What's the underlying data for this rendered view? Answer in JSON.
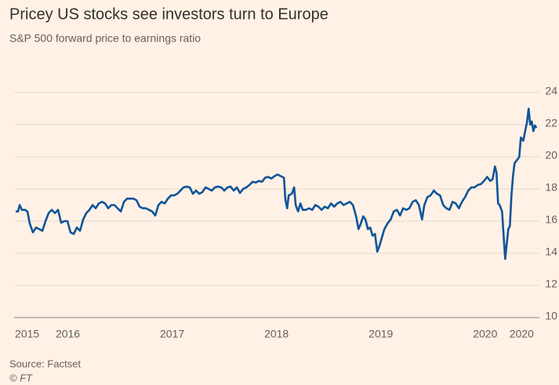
{
  "chart_data": {
    "type": "line",
    "title": "Pricey US stocks see investors turn to Europe",
    "subtitle": "S&P 500 forward price to earnings ratio",
    "source": "Source: Factset",
    "credit": "© FT",
    "xlim": [
      2015.5,
      2020.52
    ],
    "ylim": [
      10,
      24
    ],
    "yticks": [
      10,
      12,
      14,
      16,
      18,
      20,
      22,
      24
    ],
    "xticks": [
      {
        "value": 2015.61,
        "label": "2015"
      },
      2016,
      2017,
      2018,
      2019,
      2020,
      {
        "value": 2020.35,
        "label": "2020"
      }
    ],
    "grid": true,
    "x": [
      2015.5,
      2015.523,
      2015.538,
      2015.56,
      2015.59,
      2015.613,
      2015.635,
      2015.665,
      2015.695,
      2015.726,
      2015.756,
      2015.786,
      2015.816,
      2015.846,
      2015.876,
      2015.906,
      2015.936,
      2015.966,
      2015.996,
      2016.026,
      2016.056,
      2016.086,
      2016.117,
      2016.147,
      2016.177,
      2016.207,
      2016.237,
      2016.267,
      2016.297,
      2016.327,
      2016.357,
      2016.387,
      2016.417,
      2016.447,
      2016.477,
      2016.508,
      2016.538,
      2016.568,
      2016.598,
      2016.628,
      2016.658,
      2016.688,
      2016.718,
      2016.748,
      2016.778,
      2016.808,
      2016.838,
      2016.868,
      2016.898,
      2016.929,
      2016.959,
      2016.989,
      2017.019,
      2017.049,
      2017.079,
      2017.109,
      2017.139,
      2017.169,
      2017.199,
      2017.229,
      2017.259,
      2017.289,
      2017.32,
      2017.35,
      2017.38,
      2017.41,
      2017.44,
      2017.47,
      2017.5,
      2017.53,
      2017.56,
      2017.59,
      2017.62,
      2017.65,
      2017.68,
      2017.711,
      2017.741,
      2017.771,
      2017.801,
      2017.831,
      2017.861,
      2017.891,
      2017.921,
      2017.951,
      2017.981,
      2018.011,
      2018.041,
      2018.071,
      2018.086,
      2018.102,
      2018.117,
      2018.147,
      2018.169,
      2018.184,
      2018.207,
      2018.229,
      2018.252,
      2018.282,
      2018.312,
      2018.342,
      2018.372,
      2018.402,
      2018.432,
      2018.462,
      2018.492,
      2018.523,
      2018.553,
      2018.583,
      2018.613,
      2018.643,
      2018.673,
      2018.703,
      2018.733,
      2018.763,
      2018.786,
      2018.808,
      2018.831,
      2018.853,
      2018.876,
      2018.898,
      2018.921,
      2018.944,
      2018.966,
      2018.989,
      2019.011,
      2019.034,
      2019.064,
      2019.094,
      2019.124,
      2019.154,
      2019.184,
      2019.214,
      2019.244,
      2019.274,
      2019.305,
      2019.335,
      2019.365,
      2019.395,
      2019.417,
      2019.447,
      2019.477,
      2019.508,
      2019.538,
      2019.568,
      2019.598,
      2019.628,
      2019.658,
      2019.688,
      2019.718,
      2019.748,
      2019.778,
      2019.808,
      2019.838,
      2019.868,
      2019.898,
      2019.929,
      2019.959,
      2019.989,
      2020.019,
      2020.049,
      2020.071,
      2020.094,
      2020.109,
      2020.124,
      2020.139,
      2020.162,
      2020.177,
      2020.192,
      2020.207,
      2020.222,
      2020.237,
      2020.252,
      2020.267,
      2020.282,
      2020.305,
      2020.327,
      2020.342,
      2020.365,
      2020.387,
      2020.402,
      2020.417,
      2020.432,
      2020.447,
      2020.462,
      2020.477,
      2020.492
    ],
    "series": [
      {
        "color": "#0f5499",
        "values": [
          16.6,
          16.6,
          17.0,
          16.7,
          16.7,
          16.6,
          15.85,
          15.3,
          15.6,
          15.5,
          15.4,
          16.0,
          16.5,
          16.7,
          16.5,
          16.7,
          15.9,
          16.0,
          16.0,
          15.3,
          15.2,
          15.6,
          15.4,
          16.1,
          16.5,
          16.7,
          17.0,
          16.8,
          17.1,
          17.2,
          17.1,
          16.8,
          17.0,
          17.0,
          16.8,
          16.6,
          17.2,
          17.4,
          17.4,
          17.4,
          17.3,
          16.9,
          16.8,
          16.8,
          16.7,
          16.6,
          16.35,
          17.0,
          17.2,
          17.1,
          17.4,
          17.6,
          17.6,
          17.7,
          17.9,
          18.1,
          18.15,
          18.1,
          17.7,
          17.9,
          17.7,
          17.8,
          18.1,
          18.0,
          17.9,
          18.1,
          18.15,
          18.1,
          17.9,
          18.1,
          18.15,
          17.9,
          18.1,
          17.75,
          18.0,
          18.1,
          18.25,
          18.45,
          18.4,
          18.5,
          18.45,
          18.7,
          18.75,
          18.65,
          18.8,
          18.9,
          18.8,
          18.7,
          17.3,
          16.8,
          17.6,
          17.7,
          18.1,
          17.0,
          16.6,
          17.1,
          16.7,
          16.7,
          16.8,
          16.7,
          17.0,
          16.9,
          16.7,
          16.9,
          16.8,
          17.1,
          16.9,
          17.1,
          17.2,
          17.0,
          17.1,
          17.2,
          17.0,
          16.3,
          15.5,
          15.85,
          16.3,
          16.1,
          15.5,
          15.6,
          15.1,
          15.2,
          14.1,
          14.5,
          15.0,
          15.5,
          15.85,
          16.1,
          16.6,
          16.7,
          16.35,
          16.8,
          16.7,
          16.8,
          17.2,
          17.3,
          17.0,
          16.1,
          17.0,
          17.5,
          17.6,
          17.9,
          17.7,
          17.6,
          17.0,
          16.8,
          16.7,
          17.2,
          17.1,
          16.8,
          17.2,
          17.5,
          17.9,
          18.1,
          18.1,
          18.25,
          18.3,
          18.5,
          18.75,
          18.5,
          18.6,
          19.4,
          19.0,
          17.1,
          17.0,
          16.6,
          15.1,
          13.65,
          14.6,
          15.5,
          15.7,
          17.6,
          18.8,
          19.6,
          19.8,
          20.0,
          21.2,
          21.0,
          21.7,
          22.2,
          23.0,
          22.0,
          22.2,
          21.6,
          21.95,
          21.8
        ]
      }
    ]
  }
}
